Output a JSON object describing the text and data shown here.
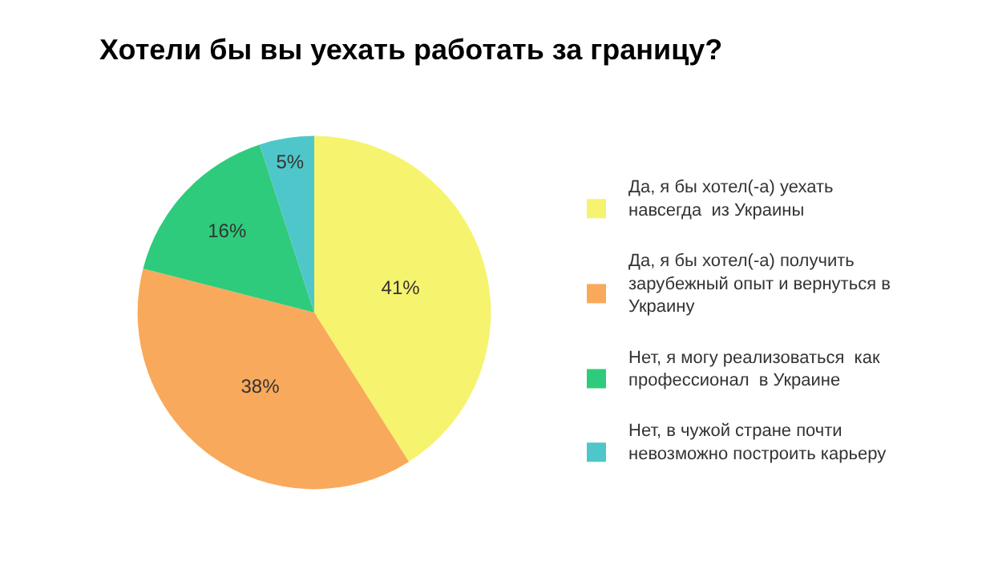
{
  "chart_data": {
    "type": "pie",
    "title": "Хотели бы вы уехать работать за границу?",
    "categories": [
      "Да, я бы хотел(-а) уехать навсегда  из Украины",
      "Да, я бы хотел(-а) получить зарубежный опыт и вернуться в Украину",
      "Нет, я могу реализоваться  как профессионал  в Украине",
      "Нет, в чужой стране почти невозможно построить карьеру"
    ],
    "values": [
      41,
      38,
      16,
      5
    ],
    "value_labels": [
      "41%",
      "38%",
      "16%",
      "5%"
    ],
    "colors": [
      "#f6f36f",
      "#f9a95b",
      "#2fcb7c",
      "#4fc6c9"
    ],
    "legend": "right"
  }
}
